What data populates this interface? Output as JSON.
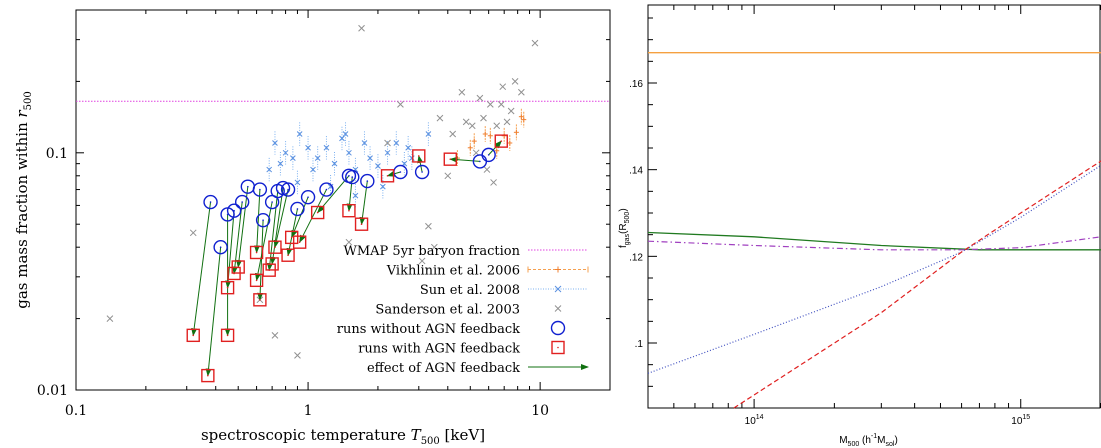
{
  "chart_data": [
    {
      "type": "scatter",
      "xlabel": "spectroscopic temperature T500 [keV]",
      "ylabel": "gas mass fraction within r500",
      "xscale": "log",
      "yscale": "log",
      "xlim": [
        0.1,
        20
      ],
      "ylim": [
        0.01,
        0.4
      ],
      "xticks": [
        0.1,
        1,
        10
      ],
      "xtick_labels": [
        "0.1",
        "1",
        "10"
      ],
      "yticks": [
        0.01,
        0.1
      ],
      "ytick_labels": [
        "0.01",
        "0.1"
      ],
      "legend_position": "bottom-right",
      "wmap_baryon_fraction": 0.165,
      "legend": [
        {
          "label": "WMAP 5yr baryon fraction",
          "style": "dotted-line",
          "color": "#e040e0"
        },
        {
          "label": "Vikhlinin et al. 2006",
          "style": "errorbar",
          "color": "#f5a050"
        },
        {
          "label": "Sun et al. 2008",
          "style": "errorbar-x",
          "color": "#7ab0f0"
        },
        {
          "label": "Sanderson et al. 2003",
          "style": "cross",
          "color": "#a0a0a0"
        },
        {
          "label": "runs without AGN feedback",
          "style": "circle",
          "color": "#1020d0"
        },
        {
          "label": "runs with AGN feedback",
          "style": "square",
          "color": "#e02020"
        },
        {
          "label": "effect of AGN feedback",
          "style": "arrow",
          "color": "#107010"
        }
      ],
      "series": [
        {
          "name": "runs without AGN feedback",
          "points": [
            [
              0.38,
              0.062
            ],
            [
              0.42,
              0.04
            ],
            [
              0.45,
              0.055
            ],
            [
              0.48,
              0.057
            ],
            [
              0.52,
              0.062
            ],
            [
              0.55,
              0.072
            ],
            [
              0.62,
              0.07
            ],
            [
              0.64,
              0.052
            ],
            [
              0.7,
              0.062
            ],
            [
              0.74,
              0.069
            ],
            [
              0.78,
              0.071
            ],
            [
              0.82,
              0.07
            ],
            [
              0.9,
              0.058
            ],
            [
              1.0,
              0.065
            ],
            [
              1.2,
              0.07
            ],
            [
              1.5,
              0.08
            ],
            [
              1.55,
              0.079
            ],
            [
              1.8,
              0.076
            ],
            [
              2.5,
              0.083
            ],
            [
              3.1,
              0.083
            ],
            [
              5.5,
              0.092
            ],
            [
              6.0,
              0.098
            ]
          ]
        },
        {
          "name": "runs with AGN feedback",
          "points": [
            [
              0.32,
              0.017
            ],
            [
              0.37,
              0.0115
            ],
            [
              0.45,
              0.017
            ],
            [
              0.45,
              0.027
            ],
            [
              0.48,
              0.031
            ],
            [
              0.5,
              0.033
            ],
            [
              0.6,
              0.038
            ],
            [
              0.6,
              0.029
            ],
            [
              0.62,
              0.024
            ],
            [
              0.68,
              0.032
            ],
            [
              0.7,
              0.034
            ],
            [
              0.72,
              0.04
            ],
            [
              0.82,
              0.037
            ],
            [
              0.85,
              0.044
            ],
            [
              0.92,
              0.042
            ],
            [
              1.1,
              0.056
            ],
            [
              1.5,
              0.057
            ],
            [
              1.7,
              0.05
            ],
            [
              2.2,
              0.08
            ],
            [
              3.0,
              0.097
            ],
            [
              4.1,
              0.094
            ],
            [
              6.8,
              0.112
            ]
          ]
        },
        {
          "name": "Vikhlinin et al. 2006",
          "points": [
            [
              4.4,
              0.095
            ],
            [
              5.0,
              0.105
            ],
            [
              5.2,
              0.112
            ],
            [
              6.1,
              0.118
            ],
            [
              6.5,
              0.102
            ],
            [
              7.0,
              0.118
            ],
            [
              7.4,
              0.11
            ],
            [
              7.9,
              0.122
            ],
            [
              8.3,
              0.142
            ],
            [
              8.5,
              0.138
            ],
            [
              5.8,
              0.12
            ]
          ]
        },
        {
          "name": "Sun et al. 2008",
          "points": [
            [
              0.72,
              0.11
            ],
            [
              0.76,
              0.09
            ],
            [
              0.8,
              0.1
            ],
            [
              0.86,
              0.095
            ],
            [
              0.92,
              0.12
            ],
            [
              1.0,
              0.105
            ],
            [
              1.05,
              0.085
            ],
            [
              1.1,
              0.095
            ],
            [
              1.2,
              0.105
            ],
            [
              1.3,
              0.09
            ],
            [
              1.4,
              0.115
            ],
            [
              1.5,
              0.1
            ],
            [
              1.6,
              0.085
            ],
            [
              1.75,
              0.11
            ],
            [
              1.85,
              0.095
            ],
            [
              2.0,
              0.088
            ],
            [
              2.2,
              0.1
            ],
            [
              2.4,
              0.11
            ],
            [
              2.6,
              0.09
            ],
            [
              2.8,
              0.095
            ],
            [
              3.3,
              0.12
            ],
            [
              0.9,
              0.075
            ],
            [
              1.25,
              0.072
            ],
            [
              1.45,
              0.12
            ],
            [
              1.6,
              0.066
            ],
            [
              2.1,
              0.072
            ],
            [
              2.7,
              0.105
            ],
            [
              0.68,
              0.085
            ]
          ]
        },
        {
          "name": "Sanderson et al. 2003",
          "points": [
            [
              0.14,
              0.02
            ],
            [
              0.32,
              0.046
            ],
            [
              0.62,
              0.024
            ],
            [
              0.72,
              0.017
            ],
            [
              0.9,
              0.014
            ],
            [
              1.5,
              0.042
            ],
            [
              2.2,
              0.11
            ],
            [
              2.5,
              0.16
            ],
            [
              3.1,
              0.035
            ],
            [
              3.3,
              0.049
            ],
            [
              3.5,
              0.04
            ],
            [
              4.2,
              0.12
            ],
            [
              4.6,
              0.18
            ],
            [
              5.1,
              0.13
            ],
            [
              5.3,
              0.1
            ],
            [
              5.7,
              0.14
            ],
            [
              6.1,
              0.16
            ],
            [
              6.5,
              0.13
            ],
            [
              6.9,
              0.19
            ],
            [
              7.5,
              0.15
            ],
            [
              7.8,
              0.2
            ],
            [
              8.3,
              0.18
            ],
            [
              9.5,
              0.29
            ],
            [
              6.3,
              0.075
            ],
            [
              5.9,
              0.085
            ],
            [
              1.7,
              0.335
            ],
            [
              4.8,
              0.135
            ],
            [
              7.2,
              0.135
            ],
            [
              4.0,
              0.08
            ],
            [
              3.7,
              0.14
            ],
            [
              6.8,
              0.16
            ],
            [
              5.5,
              0.17
            ]
          ]
        }
      ],
      "arrows": [
        [
          [
            0.38,
            0.062
          ],
          [
            0.32,
            0.017
          ]
        ],
        [
          [
            0.42,
            0.04
          ],
          [
            0.37,
            0.0115
          ]
        ],
        [
          [
            0.45,
            0.055
          ],
          [
            0.45,
            0.017
          ]
        ],
        [
          [
            0.48,
            0.057
          ],
          [
            0.45,
            0.027
          ]
        ],
        [
          [
            0.52,
            0.062
          ],
          [
            0.48,
            0.031
          ]
        ],
        [
          [
            0.55,
            0.072
          ],
          [
            0.5,
            0.033
          ]
        ],
        [
          [
            0.62,
            0.07
          ],
          [
            0.6,
            0.038
          ]
        ],
        [
          [
            0.64,
            0.052
          ],
          [
            0.62,
            0.024
          ]
        ],
        [
          [
            0.7,
            0.062
          ],
          [
            0.6,
            0.029
          ]
        ],
        [
          [
            0.74,
            0.069
          ],
          [
            0.68,
            0.032
          ]
        ],
        [
          [
            0.78,
            0.071
          ],
          [
            0.7,
            0.034
          ]
        ],
        [
          [
            0.82,
            0.07
          ],
          [
            0.72,
            0.04
          ]
        ],
        [
          [
            0.9,
            0.058
          ],
          [
            0.82,
            0.037
          ]
        ],
        [
          [
            1.0,
            0.065
          ],
          [
            0.85,
            0.044
          ]
        ],
        [
          [
            1.2,
            0.07
          ],
          [
            0.92,
            0.042
          ]
        ],
        [
          [
            1.5,
            0.08
          ],
          [
            1.1,
            0.056
          ]
        ],
        [
          [
            1.55,
            0.079
          ],
          [
            1.5,
            0.057
          ]
        ],
        [
          [
            1.8,
            0.076
          ],
          [
            1.7,
            0.05
          ]
        ],
        [
          [
            2.5,
            0.083
          ],
          [
            2.2,
            0.08
          ]
        ],
        [
          [
            3.1,
            0.083
          ],
          [
            3.0,
            0.097
          ]
        ],
        [
          [
            5.5,
            0.092
          ],
          [
            4.1,
            0.094
          ]
        ],
        [
          [
            6.0,
            0.098
          ],
          [
            6.8,
            0.112
          ]
        ]
      ]
    },
    {
      "type": "line",
      "xlabel": "M500 (h^-1 Msol)",
      "ylabel": "fgas(R500)",
      "xscale": "log",
      "xlim": [
        40000000000000.0,
        2000000000000000.0
      ],
      "ylim": [
        0.085,
        0.178
      ],
      "xticks": [
        100000000000000.0,
        1000000000000000.0
      ],
      "xtick_labels": [
        "10^14",
        "10^15"
      ],
      "yticks": [
        0.1,
        0.12,
        0.14,
        0.16
      ],
      "ytick_labels": [
        ".1",
        ".12",
        ".14",
        ".16"
      ],
      "series": [
        {
          "style": "solid",
          "color": "#f5a040",
          "x": [
            40000000000000.0,
            2000000000000000.0
          ],
          "y": [
            0.167,
            0.167
          ]
        },
        {
          "style": "solid",
          "color": "#207a20",
          "x": [
            40000000000000.0,
            100000000000000.0,
            300000000000000.0,
            700000000000000.0,
            2000000000000000.0
          ],
          "y": [
            0.1255,
            0.1245,
            0.1225,
            0.1215,
            0.1215
          ]
        },
        {
          "style": "dashdot",
          "color": "#a040c0",
          "x": [
            40000000000000.0,
            100000000000000.0,
            300000000000000.0,
            600000000000000.0,
            1000000000000000.0,
            2000000000000000.0
          ],
          "y": [
            0.1235,
            0.1225,
            0.1215,
            0.1215,
            0.122,
            0.1245
          ]
        },
        {
          "style": "dotted",
          "color": "#4050c0",
          "x": [
            40000000000000.0,
            100000000000000.0,
            300000000000000.0,
            600000000000000.0,
            1000000000000000.0,
            2000000000000000.0
          ],
          "y": [
            0.093,
            0.102,
            0.113,
            0.121,
            0.129,
            0.141
          ]
        },
        {
          "style": "dashed",
          "color": "#e02020",
          "x": [
            84000000000000.0,
            300000000000000.0,
            600000000000000.0,
            1000000000000000.0,
            2000000000000000.0
          ],
          "y": [
            0.085,
            0.107,
            0.121,
            0.13,
            0.142
          ]
        }
      ]
    }
  ]
}
